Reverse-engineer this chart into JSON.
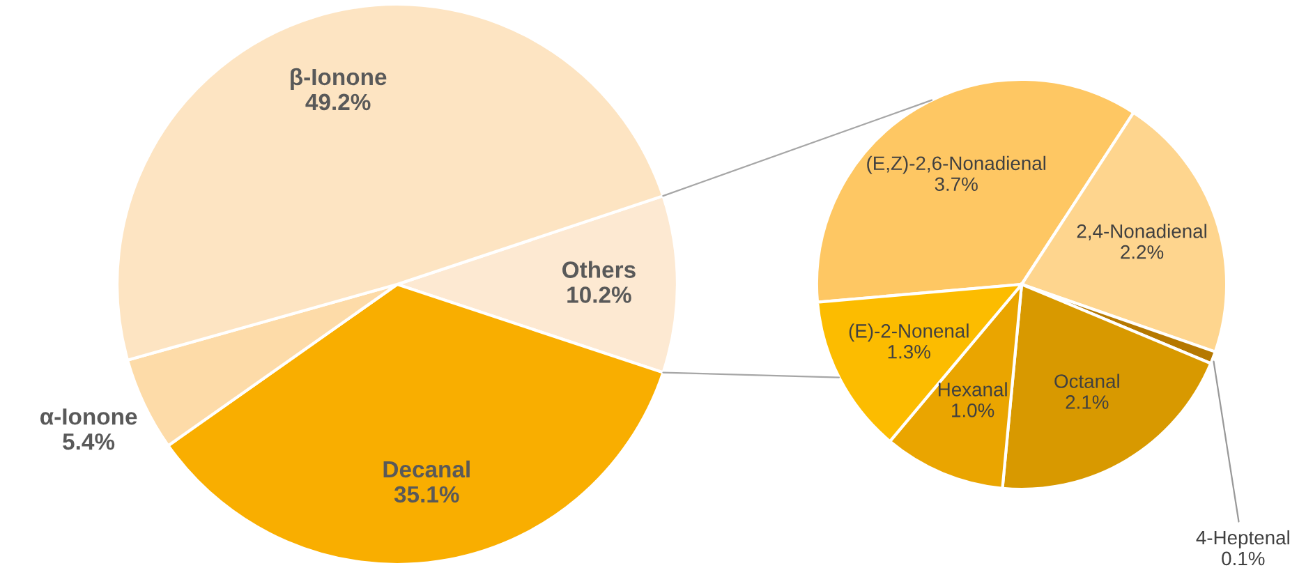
{
  "chart_data": [
    {
      "type": "pie",
      "categories": [
        "Others",
        "Decanal",
        "α-Ionone",
        "β-Ionone"
      ],
      "values": [
        10.2,
        35.1,
        5.4,
        49.2
      ],
      "colors": [
        "#fde9d2",
        "#f9ae00",
        "#fddba8",
        "#fde4c2"
      ],
      "value_labels": [
        "10.2%",
        "35.1%",
        "5.4%",
        "49.2%"
      ]
    },
    {
      "type": "pie",
      "categories": [
        "(E,Z)-2,6-Nonadienal",
        "2,4-Nonadienal",
        "4-Heptenal",
        "Octanal",
        "Hexanal",
        "(E)-2-Nonenal"
      ],
      "values": [
        3.7,
        2.2,
        0.1,
        2.1,
        1.0,
        1.3
      ],
      "colors": [
        "#fec763",
        "#fed58e",
        "#b57800",
        "#d89900",
        "#eaa500",
        "#fcbc00"
      ],
      "value_labels": [
        "3.7%",
        "2.2%",
        "0.1%",
        "2.1%",
        "1.0%",
        "1.3%"
      ]
    }
  ]
}
